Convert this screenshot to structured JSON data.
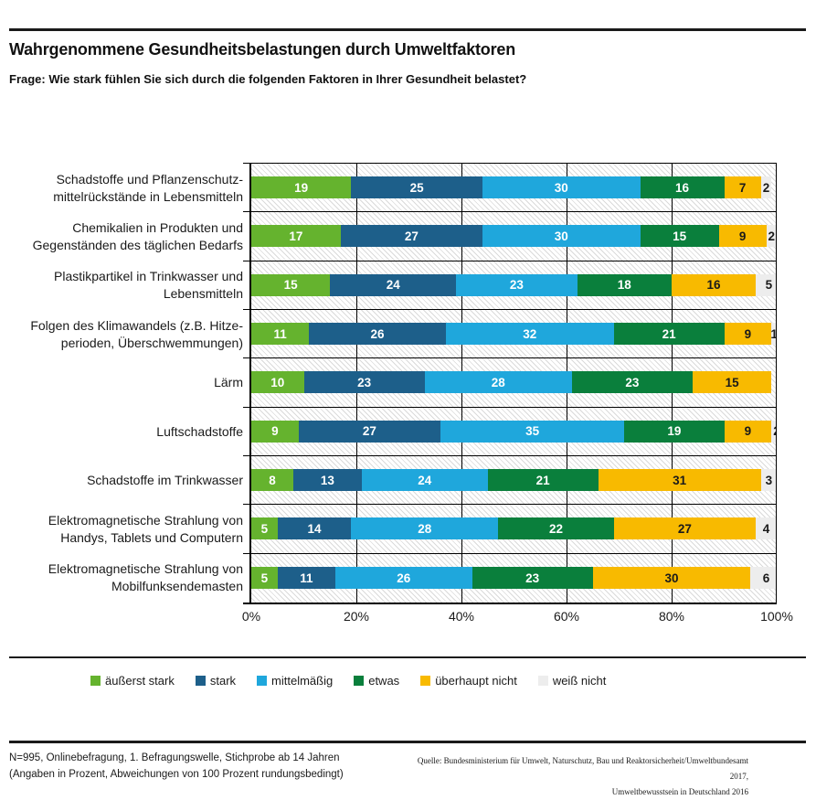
{
  "chart_data": {
    "type": "bar",
    "orientation": "horizontal",
    "stacked": true,
    "unit": "percent",
    "title": "Wahrgenommene Gesundheitsbelastungen durch Umweltfaktoren",
    "subtitle": "Frage: Wie stark fühlen Sie sich durch die folgenden Faktoren in Ihrer Gesundheit belastet?",
    "categories": [
      "Schadstoffe und Pflanzenschutz-\nmittelrückstände in Lebensmitteln",
      "Chemikalien in Produkten und\nGegenständen des täglichen Bedarfs",
      "Plastikpartikel in Trinkwasser und\nLebensmitteln",
      "Folgen des Klimawandels (z.B. Hitze-\nperioden, Überschwemmungen)",
      "Lärm",
      "Luftschadstoffe",
      "Schadstoffe im Trinkwasser",
      "Elektromagnetische Strahlung von\nHandys, Tablets und Computern",
      "Elektromagnetische Strahlung von\nMobilfunksendemasten"
    ],
    "series": [
      {
        "key": "aeusserst-stark",
        "name": "äußerst stark",
        "color": "#65B32E",
        "label_color": "#ffffff",
        "values": [
          19,
          17,
          15,
          11,
          10,
          9,
          8,
          5,
          5
        ]
      },
      {
        "key": "stark",
        "name": "stark",
        "color": "#1D5F8A",
        "label_color": "#ffffff",
        "values": [
          25,
          27,
          24,
          26,
          23,
          27,
          13,
          14,
          11
        ]
      },
      {
        "key": "mittelmaessig",
        "name": "mittelmäßig",
        "color": "#1FA7DC",
        "label_color": "#ffffff",
        "values": [
          30,
          30,
          23,
          32,
          28,
          35,
          24,
          28,
          26
        ]
      },
      {
        "key": "etwas",
        "name": "etwas",
        "color": "#0A7F3C",
        "label_color": "#ffffff",
        "values": [
          16,
          15,
          18,
          21,
          23,
          19,
          21,
          22,
          23
        ]
      },
      {
        "key": "ueberhaupt-nicht",
        "name": "überhaupt nicht",
        "color": "#F8BA00",
        "label_color": "#1a1a1a",
        "values": [
          7,
          9,
          16,
          9,
          15,
          9,
          31,
          27,
          30
        ]
      },
      {
        "key": "weiss-nicht",
        "name": "weiß nicht",
        "color": "#EDEDED",
        "label_color": "#1a1a1a",
        "values": [
          2,
          2,
          5,
          1,
          null,
          2,
          3,
          4,
          6
        ]
      }
    ],
    "x_tick_labels": [
      "0%",
      "20%",
      "40%",
      "60%",
      "80%",
      "100%"
    ],
    "xlim": [
      0,
      100
    ],
    "grid": true,
    "legend_position": "bottom"
  },
  "footer": {
    "note_line1": "N=995, Onlinebefragung, 1. Befragungswelle, Stichprobe ab 14 Jahren",
    "note_line2": "(Angaben in Prozent, Abweichungen von 100 Prozent rundungsbedingt)",
    "source_line1": "Quelle: Bundesministerium für Umwelt, Naturschutz, Bau und Reaktorsicherheit/Umweltbundesamt 2017,",
    "source_line2": "Umweltbewusstsein in Deutschland 2016"
  }
}
